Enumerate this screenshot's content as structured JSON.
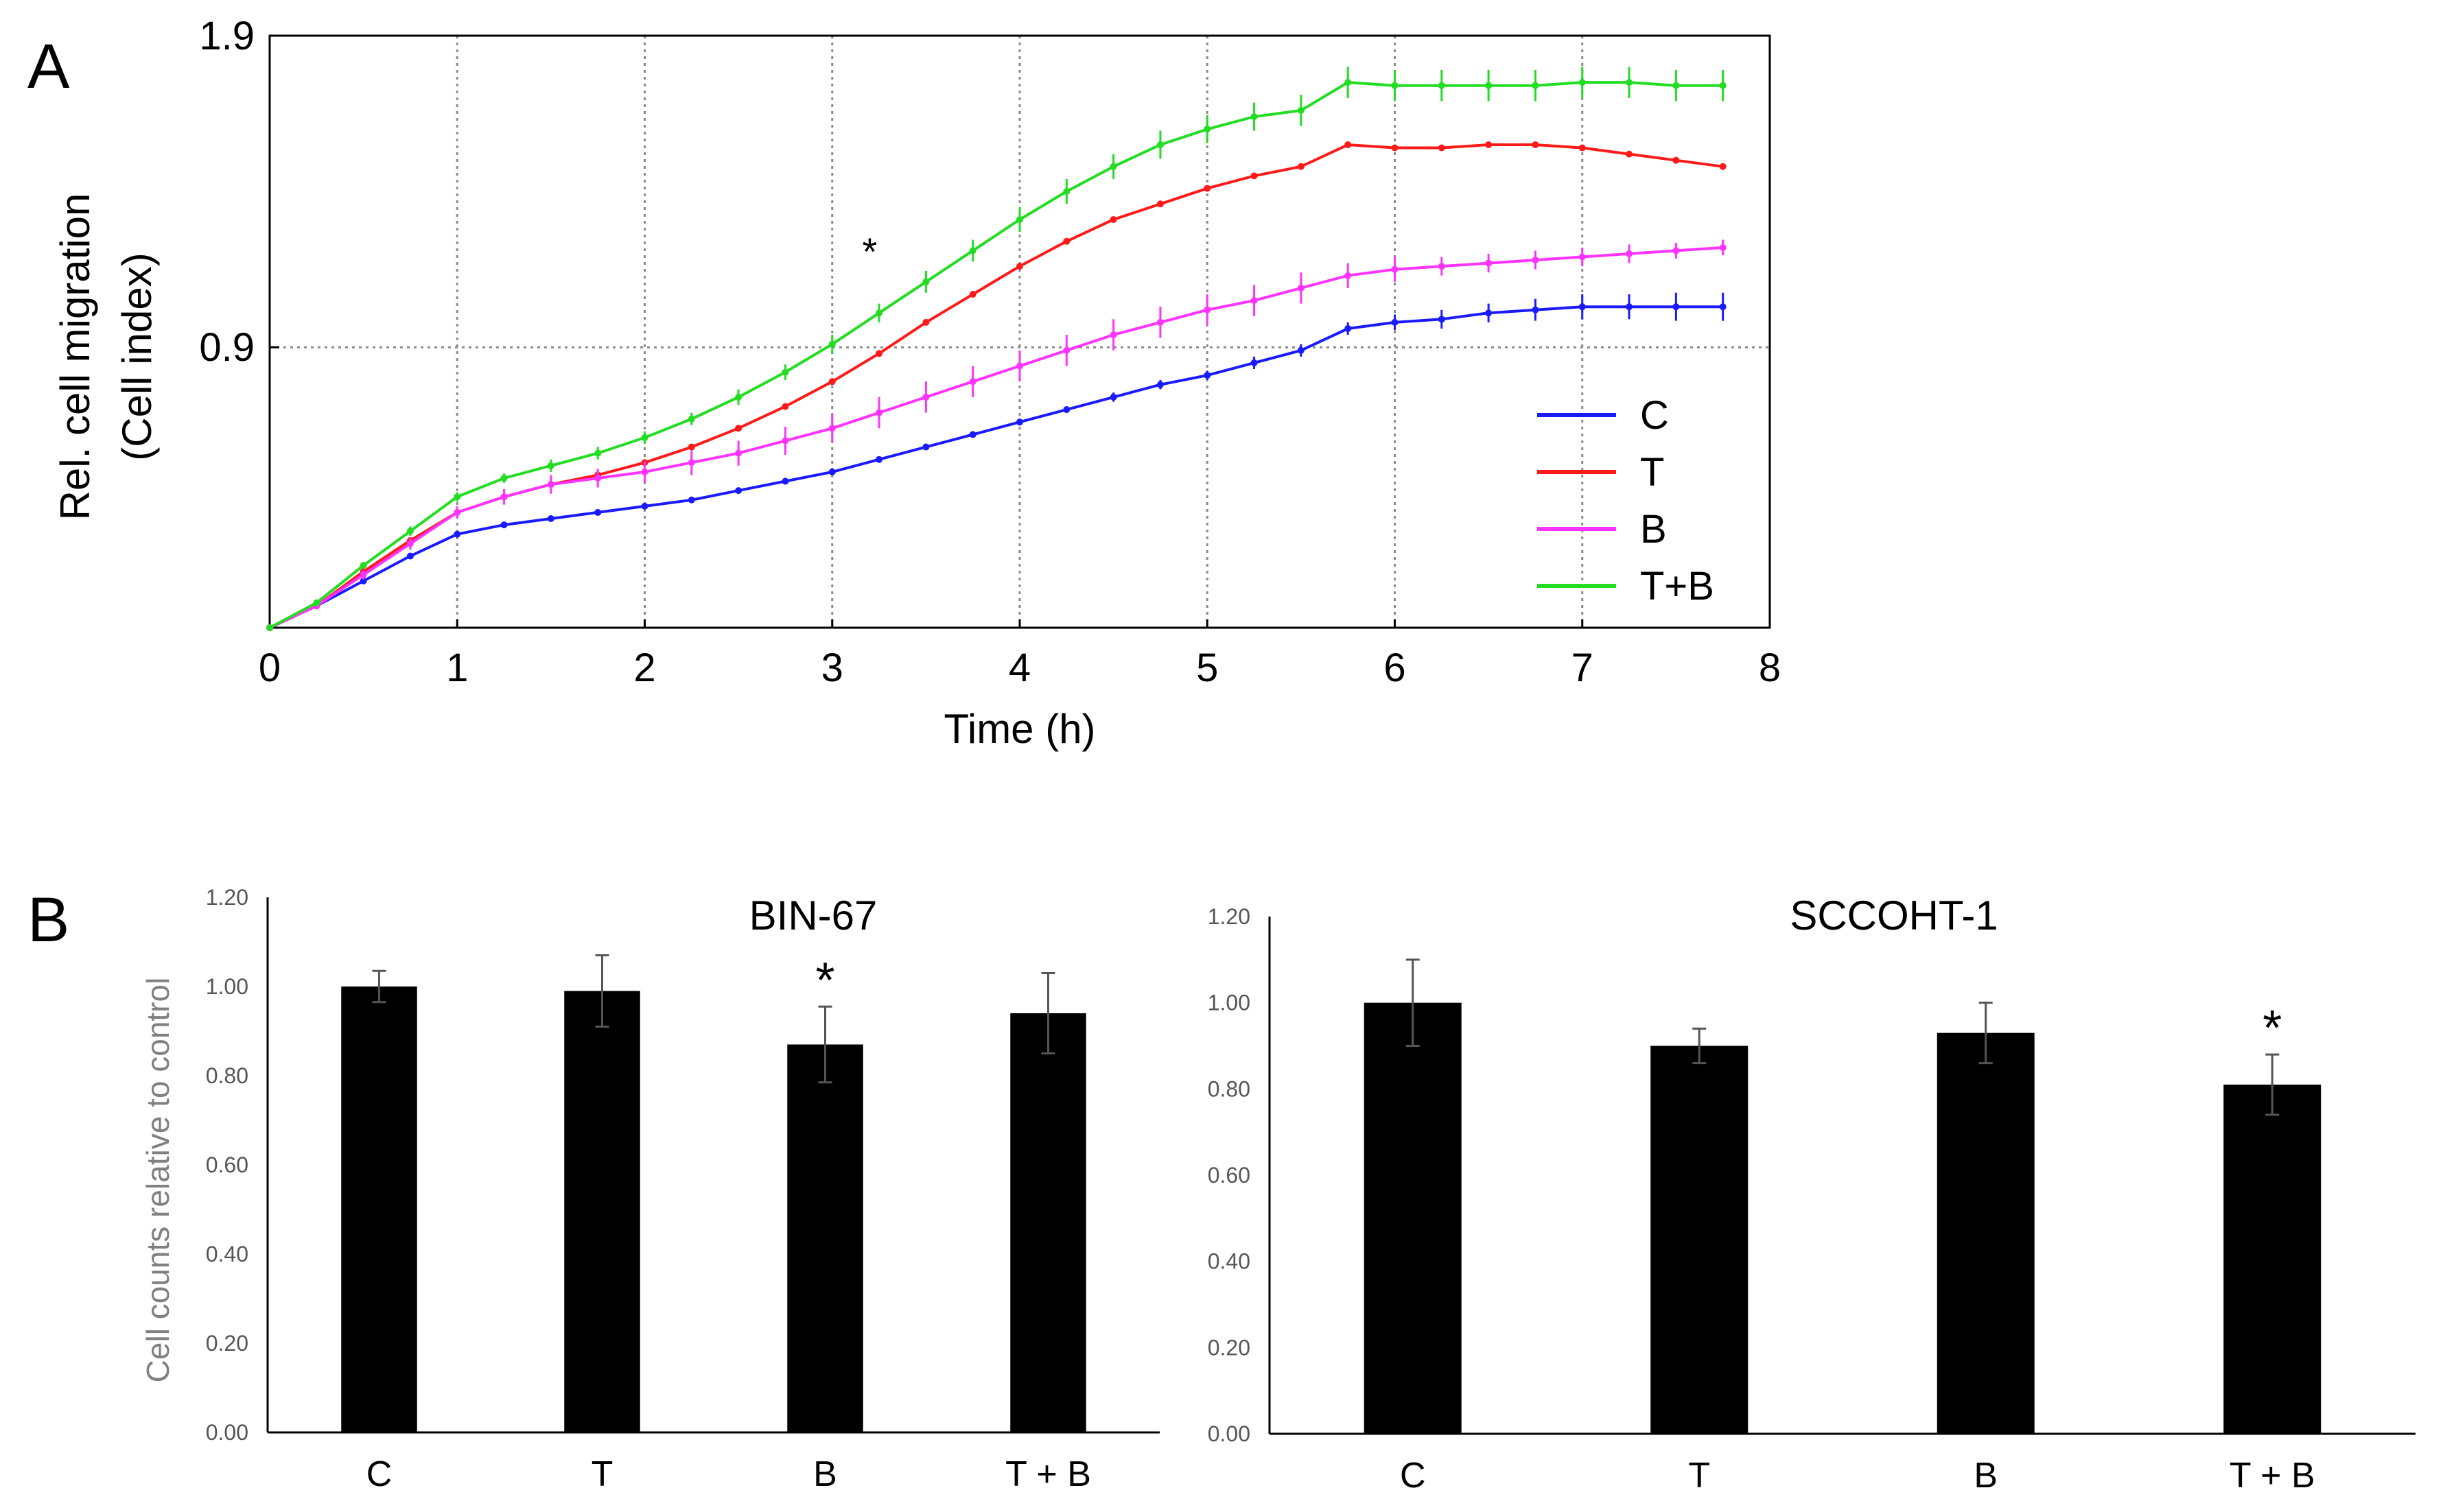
{
  "panels": {
    "a_label": "A",
    "b_label": "B"
  },
  "chart_data": [
    {
      "id": "panel-a",
      "type": "line",
      "title": "",
      "xlabel": "Time (h)",
      "ylabel_line1": "Rel. cell migration",
      "ylabel_line2": "(Cell index)",
      "xlim": [
        0,
        8
      ],
      "ylim": [
        0,
        1.9
      ],
      "xticks": [
        0,
        1,
        2,
        3,
        4,
        5,
        6,
        7,
        8
      ],
      "yticks": [
        0.9,
        1.9
      ],
      "ytick_labels": [
        "0.9",
        "1.9"
      ],
      "grid": true,
      "legend_position": "bottom-right",
      "annotation": {
        "text": "*",
        "x": 3.2,
        "y": 1.2
      },
      "x": [
        0,
        0.25,
        0.5,
        0.75,
        1,
        1.25,
        1.5,
        1.75,
        2,
        2.25,
        2.5,
        2.75,
        3,
        3.25,
        3.5,
        3.75,
        4,
        4.25,
        4.5,
        4.75,
        5,
        5.25,
        5.5,
        5.75,
        6,
        6.25,
        6.5,
        6.75,
        7,
        7.25,
        7.5,
        7.75
      ],
      "series": [
        {
          "name": "C",
          "color": "#1a1aff",
          "values": [
            0,
            0.07,
            0.15,
            0.23,
            0.3,
            0.33,
            0.35,
            0.37,
            0.39,
            0.41,
            0.44,
            0.47,
            0.5,
            0.54,
            0.58,
            0.62,
            0.66,
            0.7,
            0.74,
            0.78,
            0.81,
            0.85,
            0.89,
            0.96,
            0.98,
            0.99,
            1.01,
            1.02,
            1.03,
            1.03,
            1.03,
            1.03
          ],
          "errors": [
            0.005,
            0.01,
            0.01,
            0.01,
            0.01,
            0.01,
            0.01,
            0.01,
            0.01,
            0.01,
            0.01,
            0.01,
            0.01,
            0.01,
            0.01,
            0.01,
            0.01,
            0.01,
            0.015,
            0.015,
            0.015,
            0.02,
            0.02,
            0.02,
            0.025,
            0.03,
            0.03,
            0.035,
            0.04,
            0.04,
            0.045,
            0.045
          ]
        },
        {
          "name": "T",
          "color": "#ff1a1a",
          "values": [
            0,
            0.07,
            0.18,
            0.28,
            0.37,
            0.42,
            0.46,
            0.49,
            0.53,
            0.58,
            0.64,
            0.71,
            0.79,
            0.88,
            0.98,
            1.07,
            1.16,
            1.24,
            1.31,
            1.36,
            1.41,
            1.45,
            1.48,
            1.55,
            1.54,
            1.54,
            1.55,
            1.55,
            1.54,
            1.52,
            1.5,
            1.48
          ],
          "errors": [
            0.005,
            0.005,
            0.005,
            0.005,
            0.005,
            0.005,
            0.005,
            0.005,
            0.005,
            0.005,
            0.005,
            0.005,
            0.005,
            0.005,
            0.005,
            0.005,
            0.005,
            0.005,
            0.005,
            0.005,
            0.005,
            0.005,
            0.005,
            0.005,
            0.005,
            0.005,
            0.005,
            0.005,
            0.005,
            0.005,
            0.005,
            0.005
          ]
        },
        {
          "name": "B",
          "color": "#ff33ff",
          "values": [
            0,
            0.07,
            0.17,
            0.27,
            0.37,
            0.42,
            0.46,
            0.48,
            0.5,
            0.53,
            0.56,
            0.6,
            0.64,
            0.69,
            0.74,
            0.79,
            0.84,
            0.89,
            0.94,
            0.98,
            1.02,
            1.05,
            1.09,
            1.13,
            1.15,
            1.16,
            1.17,
            1.18,
            1.19,
            1.2,
            1.21,
            1.22
          ],
          "errors": [
            0.01,
            0.01,
            0.015,
            0.02,
            0.02,
            0.025,
            0.03,
            0.03,
            0.035,
            0.04,
            0.04,
            0.045,
            0.045,
            0.05,
            0.05,
            0.05,
            0.05,
            0.05,
            0.05,
            0.05,
            0.05,
            0.05,
            0.05,
            0.04,
            0.04,
            0.03,
            0.03,
            0.03,
            0.03,
            0.03,
            0.025,
            0.025
          ]
        },
        {
          "name": "T+B",
          "color": "#22dd22",
          "values": [
            0,
            0.08,
            0.2,
            0.31,
            0.42,
            0.48,
            0.52,
            0.56,
            0.61,
            0.67,
            0.74,
            0.82,
            0.91,
            1.01,
            1.11,
            1.21,
            1.31,
            1.4,
            1.48,
            1.55,
            1.6,
            1.64,
            1.66,
            1.75,
            1.74,
            1.74,
            1.74,
            1.74,
            1.75,
            1.75,
            1.74,
            1.74
          ],
          "errors": [
            0.005,
            0.01,
            0.01,
            0.015,
            0.015,
            0.015,
            0.02,
            0.02,
            0.02,
            0.02,
            0.025,
            0.025,
            0.03,
            0.03,
            0.035,
            0.035,
            0.04,
            0.04,
            0.04,
            0.045,
            0.045,
            0.045,
            0.05,
            0.05,
            0.05,
            0.05,
            0.05,
            0.05,
            0.05,
            0.05,
            0.05,
            0.05
          ]
        }
      ]
    },
    {
      "id": "panel-b-bin67",
      "type": "bar",
      "title": "BIN-67",
      "ylabel": "Cell counts relative to control",
      "xlabel": "",
      "ylim": [
        0,
        1.2
      ],
      "ytick_labels": [
        "0.00",
        "0.20",
        "0.40",
        "0.60",
        "0.80",
        "1.00",
        "1.20"
      ],
      "categories": [
        "C",
        "T",
        "B",
        "T + B"
      ],
      "values": [
        1.0,
        0.99,
        0.87,
        0.94
      ],
      "errors": [
        0.035,
        0.08,
        0.085,
        0.09
      ],
      "significance": [
        "",
        "",
        "*",
        ""
      ],
      "bar_color": "#000000"
    },
    {
      "id": "panel-b-sccoht1",
      "type": "bar",
      "title": "SCCOHT-1",
      "ylabel": "",
      "xlabel": "",
      "ylim": [
        0,
        1.2
      ],
      "ytick_labels": [
        "0.00",
        "0.20",
        "0.40",
        "0.60",
        "0.80",
        "1.00",
        "1.20"
      ],
      "categories": [
        "C",
        "T",
        "B",
        "T + B"
      ],
      "values": [
        1.0,
        0.9,
        0.93,
        0.81
      ],
      "errors": [
        0.1,
        0.04,
        0.07,
        0.07
      ],
      "significance": [
        "",
        "",
        "",
        "*"
      ],
      "bar_color": "#000000"
    }
  ]
}
